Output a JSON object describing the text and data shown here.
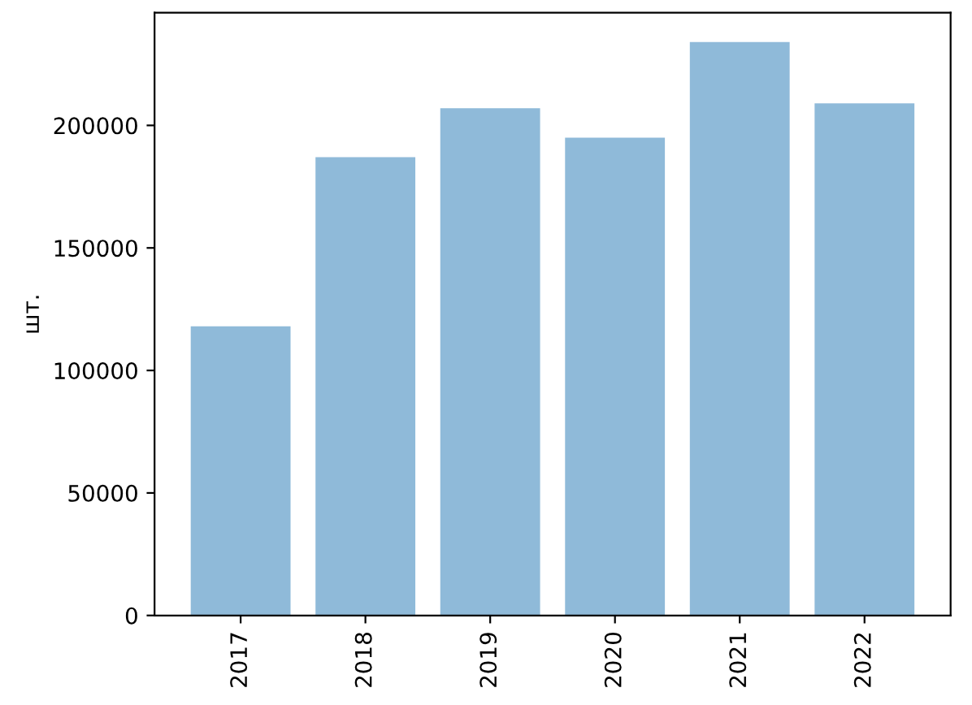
{
  "chart_data": {
    "type": "bar",
    "ylabel": "шт.",
    "categories": [
      "2017",
      "2018",
      "2019",
      "2020",
      "2021",
      "2022"
    ],
    "values": [
      118000,
      187000,
      207000,
      195000,
      234000,
      209000
    ],
    "color": "#8fbad9",
    "ylim": [
      0,
      246000
    ],
    "yticks": [
      0,
      50000,
      100000,
      150000,
      200000
    ],
    "grid": false,
    "legend": false
  }
}
